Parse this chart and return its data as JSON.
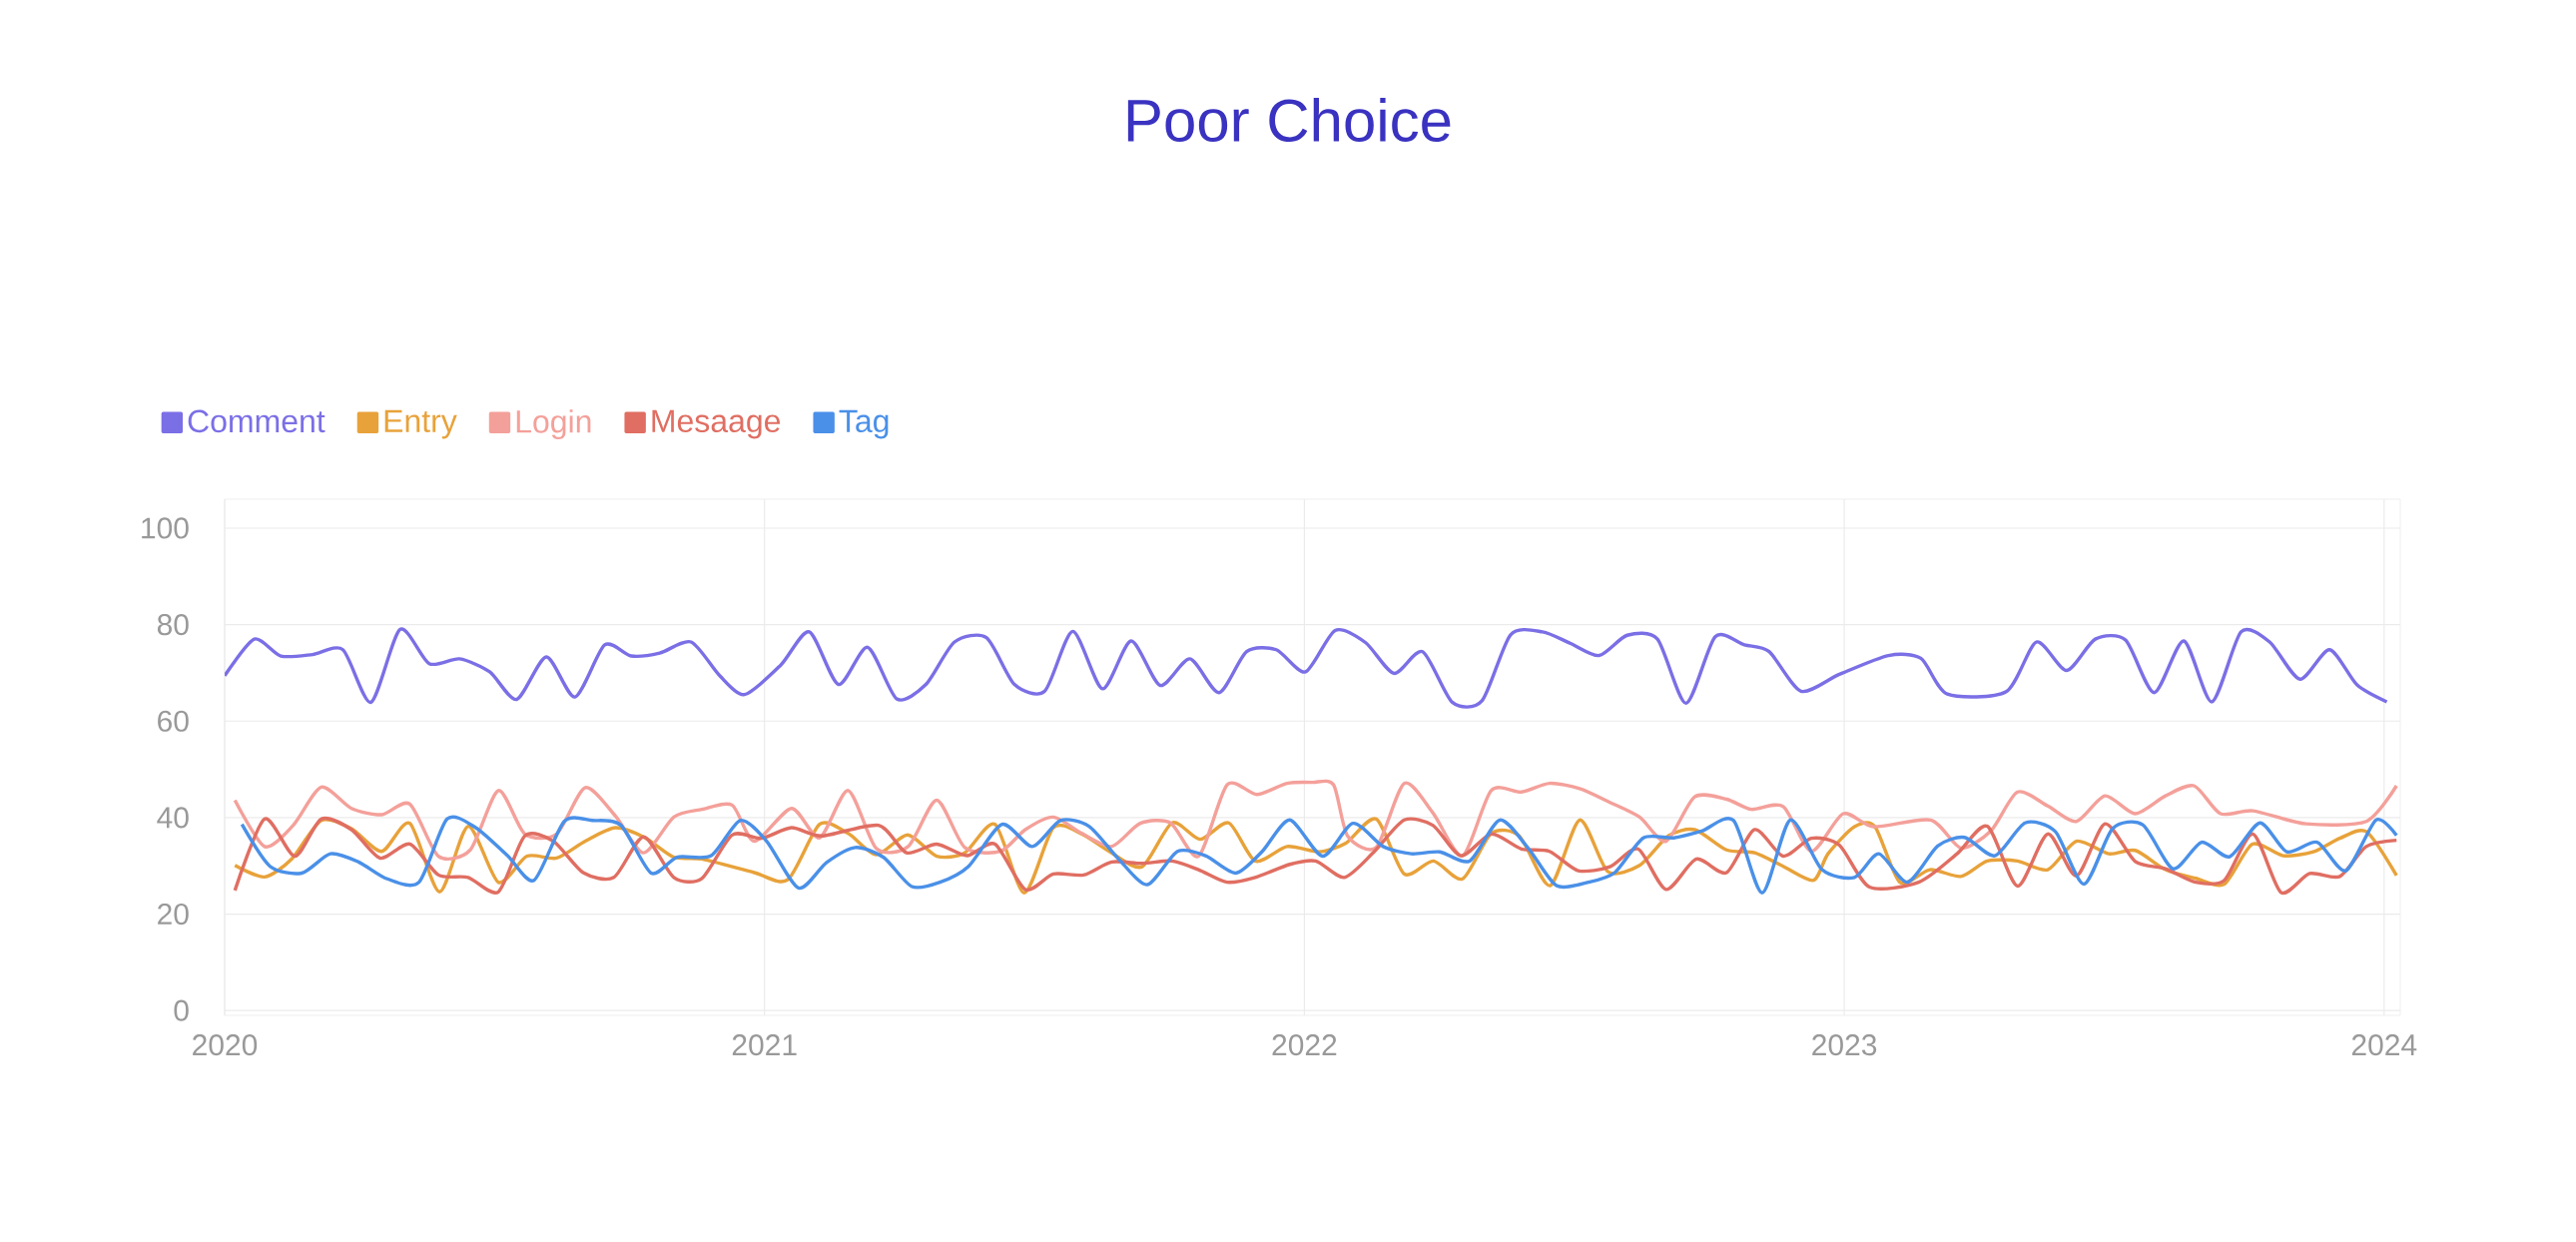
{
  "chart_data": {
    "type": "line",
    "title": "Poor Choice",
    "legend": "top left",
    "grid": true,
    "xlim": [
      2020,
      2024.03
    ],
    "xticks": [
      2020,
      2021,
      2022,
      2023,
      2024
    ],
    "ylim": [
      -1,
      106
    ],
    "yticks": [
      0,
      20,
      40,
      60,
      80,
      100
    ],
    "series": [
      {
        "name": "Comment",
        "color": "#7b6fe6",
        "x": [
          2020.0,
          2020.055,
          2020.104,
          2020.163,
          2020.219,
          2020.271,
          2020.325,
          2020.379,
          2020.435,
          2020.491,
          2020.541,
          2020.596,
          2020.649,
          2020.704,
          2020.753,
          2020.806,
          2020.864,
          2020.917,
          2020.963,
          2021.03,
          2021.083,
          2021.137,
          2021.191,
          2021.245,
          2021.299,
          2021.352,
          2021.411,
          2021.463,
          2021.519,
          2021.571,
          2021.626,
          2021.679,
          2021.733,
          2021.788,
          2021.842,
          2021.893,
          2021.948,
          2022.002,
          2022.057,
          2022.113,
          2022.166,
          2022.219,
          2022.274,
          2022.329,
          2022.382,
          2022.441,
          2022.493,
          2022.546,
          2022.598,
          2022.654,
          2022.707,
          2022.761,
          2022.815,
          2022.861,
          2022.92,
          2022.991,
          2023.082,
          2023.142,
          2023.191,
          2023.3,
          2023.356,
          2023.412,
          2023.465,
          2023.521,
          2023.574,
          2023.629,
          2023.681,
          2023.735,
          2023.788,
          2023.844,
          2023.899,
          2023.95,
          2024.005
        ],
        "values": [
          69.4,
          77.0,
          73.5,
          73.8,
          74.8,
          63.9,
          79.0,
          71.9,
          72.9,
          70.2,
          64.5,
          73.3,
          65.0,
          75.8,
          73.5,
          74.1,
          76.4,
          69.4,
          65.5,
          71.6,
          78.5,
          67.6,
          75.3,
          64.6,
          67.6,
          76.4,
          77.3,
          67.6,
          66.2,
          78.6,
          66.7,
          76.6,
          67.4,
          72.9,
          65.9,
          74.4,
          74.8,
          70.2,
          78.8,
          76.3,
          69.9,
          74.4,
          63.9,
          64.2,
          77.9,
          78.5,
          76.1,
          73.6,
          77.8,
          77.0,
          63.7,
          77.5,
          75.8,
          74.4,
          66.2,
          69.7,
          73.6,
          73.0,
          65.6,
          66.1,
          76.4,
          70.5,
          77.0,
          76.8,
          65.9,
          76.6,
          64.0,
          78.5,
          76.4,
          68.7,
          74.8,
          67.5,
          64.0
        ]
      },
      {
        "name": "Entry",
        "color": "#e8a23a",
        "x": [
          2020.019,
          2020.074,
          2020.124,
          2020.179,
          2020.235,
          2020.291,
          2020.343,
          2020.398,
          2020.451,
          2020.507,
          2020.56,
          2020.615,
          2020.668,
          2020.724,
          2020.779,
          2020.832,
          2020.884,
          2020.981,
          2021.043,
          2021.102,
          2021.155,
          2021.207,
          2021.265,
          2021.319,
          2021.371,
          2021.427,
          2021.481,
          2021.535,
          2021.588,
          2021.64,
          2021.699,
          2021.755,
          2021.807,
          2021.86,
          2021.909,
          2021.968,
          2022.028,
          2022.077,
          2022.133,
          2022.185,
          2022.239,
          2022.293,
          2022.346,
          2022.398,
          2022.455,
          2022.51,
          2022.562,
          2022.621,
          2022.674,
          2022.723,
          2022.782,
          2022.834,
          2022.887,
          2022.943,
          2022.97,
          2023.019,
          2023.057,
          2023.103,
          2023.159,
          2023.216,
          2023.265,
          2023.321,
          2023.377,
          2023.43,
          2023.49,
          2023.539,
          2023.595,
          2023.651,
          2023.704,
          2023.756,
          2023.813,
          2023.869,
          2023.918,
          2023.967,
          2024.023
        ],
        "values": [
          30.1,
          27.7,
          31.4,
          39.4,
          37.7,
          33.0,
          38.8,
          24.6,
          38.2,
          26.6,
          32.0,
          31.6,
          35.1,
          37.9,
          35.8,
          31.8,
          31.4,
          28.6,
          27.1,
          38.6,
          36.7,
          32.3,
          36.4,
          32.0,
          32.7,
          38.6,
          24.4,
          37.9,
          36.6,
          32.9,
          29.8,
          38.9,
          35.5,
          38.9,
          31.0,
          34.0,
          32.9,
          34.7,
          39.7,
          28.3,
          31.0,
          27.3,
          36.7,
          36.2,
          25.9,
          39.5,
          28.8,
          30.1,
          36.2,
          37.5,
          33.3,
          32.7,
          29.9,
          27.0,
          32.5,
          38.1,
          38.1,
          26.6,
          29.2,
          27.8,
          31.0,
          31.0,
          29.2,
          35.1,
          32.5,
          33.2,
          29.2,
          27.4,
          26.2,
          34.5,
          32.1,
          32.9,
          35.7,
          37.1,
          28.0
        ]
      },
      {
        "name": "Login",
        "color": "#f4a09a",
        "x": [
          2020.019,
          2020.074,
          2020.127,
          2020.179,
          2020.235,
          2020.291,
          2020.343,
          2020.396,
          2020.455,
          2020.507,
          2020.556,
          2020.615,
          2020.668,
          2020.724,
          2020.776,
          2020.832,
          2020.884,
          2020.94,
          2020.981,
          2021.05,
          2021.102,
          2021.155,
          2021.207,
          2021.266,
          2021.319,
          2021.371,
          2021.437,
          2021.483,
          2021.535,
          2021.588,
          2021.643,
          2021.696,
          2021.752,
          2021.804,
          2021.857,
          2021.912,
          2021.968,
          2022.015,
          2022.054,
          2022.08,
          2022.133,
          2022.185,
          2022.238,
          2022.293,
          2022.346,
          2022.402,
          2022.454,
          2022.51,
          2022.565,
          2022.621,
          2022.67,
          2022.723,
          2022.782,
          2022.828,
          2022.887,
          2022.939,
          2022.998,
          2023.054,
          2023.16,
          2023.216,
          2023.272,
          2023.321,
          2023.377,
          2023.43,
          2023.483,
          2023.539,
          2023.595,
          2023.648,
          2023.697,
          2023.757,
          2023.855,
          2023.967,
          2024.023
        ],
        "values": [
          43.6,
          34.0,
          38.4,
          46.3,
          41.9,
          40.6,
          42.8,
          32.0,
          33.3,
          45.6,
          36.6,
          36.6,
          46.2,
          40.3,
          32.7,
          40.1,
          41.7,
          42.6,
          35.1,
          41.9,
          35.8,
          45.6,
          33.6,
          34.0,
          43.6,
          33.8,
          33.0,
          37.5,
          40.1,
          36.7,
          34.0,
          38.8,
          38.9,
          32.0,
          46.8,
          44.8,
          47.1,
          47.3,
          46.8,
          36.2,
          33.8,
          47.1,
          41.0,
          32.1,
          45.6,
          45.3,
          47.1,
          46.0,
          43.2,
          40.1,
          35.1,
          44.3,
          43.8,
          41.7,
          42.3,
          33.0,
          40.8,
          38.1,
          39.5,
          33.7,
          37.3,
          45.3,
          42.4,
          39.2,
          44.5,
          40.8,
          44.5,
          46.6,
          40.8,
          41.4,
          38.7,
          39.2,
          46.6
        ]
      },
      {
        "name": "Mesaage",
        "color": "#e06e62",
        "x": [
          2020.019,
          2020.074,
          2020.13,
          2020.179,
          2020.235,
          2020.288,
          2020.343,
          2020.396,
          2020.451,
          2020.507,
          2020.556,
          2020.609,
          2020.664,
          2020.721,
          2020.776,
          2020.832,
          2020.884,
          2020.94,
          2020.994,
          2021.05,
          2021.106,
          2021.211,
          2021.263,
          2021.319,
          2021.375,
          2021.427,
          2021.483,
          2021.535,
          2021.591,
          2021.643,
          2021.699,
          2021.755,
          2021.804,
          2021.857,
          2021.909,
          2021.973,
          2022.021,
          2022.074,
          2022.129,
          2022.185,
          2022.238,
          2022.29,
          2022.346,
          2022.402,
          2022.454,
          2022.507,
          2022.566,
          2022.618,
          2022.67,
          2022.726,
          2022.782,
          2022.834,
          2022.887,
          2022.939,
          2022.991,
          2023.047,
          2023.138,
          2023.209,
          2023.265,
          2023.321,
          2023.377,
          2023.43,
          2023.483,
          2023.539,
          2023.595,
          2023.651,
          2023.704,
          2023.757,
          2023.809,
          2023.862,
          2023.918,
          2023.967,
          2024.023
        ],
        "values": [
          24.9,
          39.7,
          32.0,
          39.7,
          37.5,
          31.6,
          34.5,
          28.1,
          27.6,
          24.6,
          36.2,
          35.1,
          28.6,
          27.6,
          36.0,
          27.6,
          27.4,
          36.4,
          35.7,
          37.9,
          36.2,
          38.4,
          32.7,
          34.5,
          32.1,
          34.5,
          25.1,
          28.3,
          28.1,
          30.8,
          30.5,
          31.0,
          29.2,
          26.6,
          27.6,
          30.3,
          31.0,
          27.6,
          32.9,
          39.5,
          38.4,
          32.1,
          36.6,
          33.5,
          33.0,
          29.0,
          29.8,
          33.5,
          25.1,
          31.4,
          28.6,
          37.5,
          32.0,
          35.7,
          34.3,
          25.6,
          26.6,
          32.5,
          38.2,
          25.8,
          36.6,
          27.9,
          38.7,
          30.9,
          29.4,
          26.6,
          27.0,
          36.6,
          24.5,
          28.4,
          27.8,
          34.0,
          35.3
        ]
      },
      {
        "name": "Tag",
        "color": "#4a90e8",
        "x": [
          2020.032,
          2020.084,
          2020.143,
          2020.196,
          2020.248,
          2020.301,
          2020.36,
          2020.412,
          2020.465,
          2020.524,
          2020.573,
          2020.629,
          2020.681,
          2020.734,
          2020.79,
          2020.838,
          2020.901,
          2020.955,
          2021.004,
          2021.063,
          2021.115,
          2021.168,
          2021.22,
          2021.273,
          2021.325,
          2021.378,
          2021.44,
          2021.496,
          2021.548,
          2021.601,
          2021.656,
          2021.709,
          2021.765,
          2021.817,
          2021.873,
          2021.922,
          2021.973,
          2022.034,
          2022.09,
          2022.146,
          2022.198,
          2022.251,
          2022.306,
          2022.362,
          2022.415,
          2022.467,
          2022.526,
          2022.575,
          2022.628,
          2022.684,
          2022.736,
          2022.795,
          2022.848,
          2022.9,
          2022.959,
          2023.019,
          2023.064,
          2023.117,
          2023.173,
          2023.223,
          2023.279,
          2023.335,
          2023.391,
          2023.444,
          2023.497,
          2023.553,
          2023.609,
          2023.662,
          2023.714,
          2023.77,
          2023.82,
          2023.876,
          2023.929,
          2023.985,
          2024.023
        ],
        "values": [
          38.6,
          29.9,
          28.5,
          32.5,
          30.8,
          27.3,
          26.6,
          39.7,
          37.9,
          32.1,
          27.0,
          39.2,
          39.4,
          38.4,
          28.5,
          31.8,
          32.1,
          39.4,
          35.1,
          25.4,
          30.7,
          33.8,
          31.8,
          25.7,
          26.6,
          29.9,
          38.6,
          34.0,
          39.4,
          38.2,
          31.4,
          26.1,
          33.0,
          32.1,
          28.5,
          33.0,
          39.5,
          32.0,
          38.8,
          34.0,
          32.5,
          32.9,
          31.0,
          39.5,
          33.6,
          25.9,
          26.6,
          28.6,
          35.8,
          35.8,
          37.2,
          39.4,
          24.4,
          39.5,
          29.2,
          27.6,
          32.5,
          26.6,
          34.1,
          35.9,
          32.1,
          38.9,
          37.1,
          26.2,
          37.7,
          38.5,
          29.4,
          34.9,
          31.9,
          38.9,
          32.9,
          34.9,
          29.0,
          39.5,
          36.3
        ]
      }
    ]
  }
}
